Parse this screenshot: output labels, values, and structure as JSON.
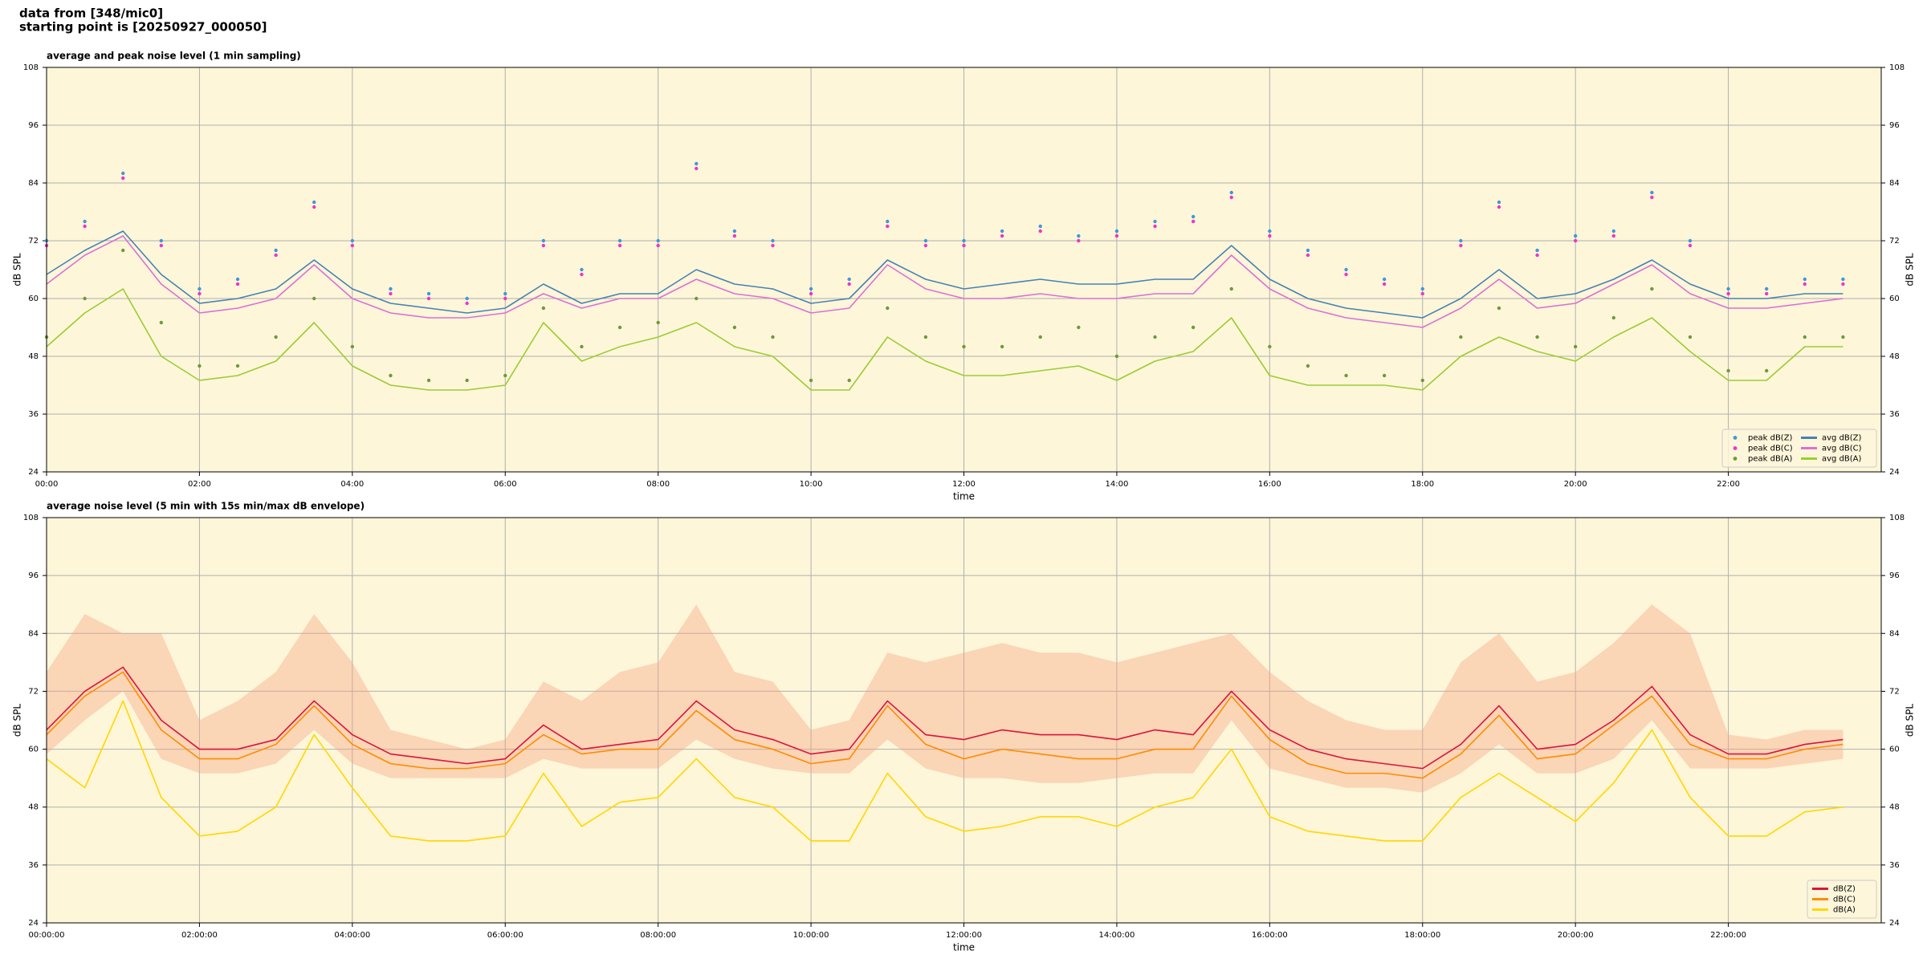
{
  "header": [
    "data from [348/mic0]",
    "starting point is [20250927_000050]"
  ],
  "chart_data": [
    {
      "type": "line",
      "title": "average and peak noise level (1 min sampling)",
      "x_label": "time",
      "y_label": "dB SPL",
      "background": "#fdf6d9",
      "xlim": [
        0,
        24
      ],
      "ylim": [
        24,
        108
      ],
      "yticks": [
        24,
        36,
        48,
        60,
        72,
        84,
        96,
        108
      ],
      "xticks": [
        {
          "value": 0,
          "label": "00:00"
        },
        {
          "value": 2,
          "label": "02:00"
        },
        {
          "value": 4,
          "label": "04:00"
        },
        {
          "value": 6,
          "label": "06:00"
        },
        {
          "value": 8,
          "label": "08:00"
        },
        {
          "value": 10,
          "label": "10:00"
        },
        {
          "value": 12,
          "label": "12:00"
        },
        {
          "value": 14,
          "label": "14:00"
        },
        {
          "value": 16,
          "label": "16:00"
        },
        {
          "value": 18,
          "label": "18:00"
        },
        {
          "value": 20,
          "label": "20:00"
        },
        {
          "value": 22,
          "label": "22:00"
        }
      ],
      "grid": true,
      "legend": "lower right",
      "legend_ncol": 2,
      "x": [
        0,
        0.5,
        1,
        1.5,
        2,
        2.5,
        3,
        3.5,
        4,
        4.5,
        5,
        5.5,
        6,
        6.5,
        7,
        7.5,
        8,
        8.5,
        9,
        9.5,
        10,
        10.5,
        11,
        11.5,
        12,
        12.5,
        13,
        13.5,
        14,
        14.5,
        15,
        15.5,
        16,
        16.5,
        17,
        17.5,
        18,
        18.5,
        19,
        19.5,
        20,
        20.5,
        21,
        21.5,
        22,
        22.5,
        23,
        23.5
      ],
      "series": [
        {
          "name": "peak dB(Z)",
          "color": "#3a9ad9",
          "style": "markers",
          "values": [
            72,
            76,
            86,
            72,
            62,
            64,
            70,
            80,
            72,
            62,
            61,
            60,
            61,
            72,
            66,
            72,
            72,
            88,
            74,
            72,
            62,
            64,
            76,
            72,
            72,
            74,
            75,
            73,
            74,
            76,
            77,
            82,
            74,
            70,
            66,
            64,
            62,
            72,
            80,
            70,
            73,
            74,
            82,
            72,
            62,
            62,
            64,
            64
          ]
        },
        {
          "name": "peak dB(C)",
          "color": "#ee33cc",
          "style": "markers",
          "values": [
            71,
            75,
            85,
            71,
            61,
            63,
            69,
            79,
            71,
            61,
            60,
            59,
            60,
            71,
            65,
            71,
            71,
            87,
            73,
            71,
            61,
            63,
            75,
            71,
            71,
            73,
            74,
            72,
            73,
            75,
            76,
            81,
            73,
            69,
            65,
            63,
            61,
            71,
            79,
            69,
            72,
            73,
            81,
            71,
            61,
            61,
            63,
            63
          ]
        },
        {
          "name": "peak dB(A)",
          "color": "#6b9a3a",
          "style": "markers",
          "values": [
            52,
            60,
            70,
            55,
            46,
            46,
            52,
            60,
            50,
            44,
            43,
            43,
            44,
            58,
            50,
            54,
            55,
            60,
            54,
            52,
            43,
            43,
            58,
            52,
            50,
            50,
            52,
            54,
            48,
            52,
            54,
            62,
            50,
            46,
            44,
            44,
            43,
            52,
            58,
            52,
            50,
            56,
            62,
            52,
            45,
            45,
            52,
            52
          ]
        },
        {
          "name": "avg dB(Z)",
          "color": "#4682b4",
          "style": "line",
          "values": [
            65,
            70,
            74,
            65,
            59,
            60,
            62,
            68,
            62,
            59,
            58,
            57,
            58,
            63,
            59,
            61,
            61,
            66,
            63,
            62,
            59,
            60,
            68,
            64,
            62,
            63,
            64,
            63,
            63,
            64,
            64,
            71,
            64,
            60,
            58,
            57,
            56,
            60,
            66,
            60,
            61,
            64,
            68,
            63,
            60,
            60,
            61,
            61
          ]
        },
        {
          "name": "avg dB(C)",
          "color": "#da70d6",
          "style": "line",
          "values": [
            63,
            69,
            73,
            63,
            57,
            58,
            60,
            67,
            60,
            57,
            56,
            56,
            57,
            61,
            58,
            60,
            60,
            64,
            61,
            60,
            57,
            58,
            67,
            62,
            60,
            60,
            61,
            60,
            60,
            61,
            61,
            69,
            62,
            58,
            56,
            55,
            54,
            58,
            64,
            58,
            59,
            63,
            67,
            61,
            58,
            58,
            59,
            60
          ]
        },
        {
          "name": "avg dB(A)",
          "color": "#9acd32",
          "style": "line",
          "values": [
            50,
            57,
            62,
            48,
            43,
            44,
            47,
            55,
            46,
            42,
            41,
            41,
            42,
            55,
            47,
            50,
            52,
            55,
            50,
            48,
            41,
            41,
            52,
            47,
            44,
            44,
            45,
            46,
            43,
            47,
            49,
            56,
            44,
            42,
            42,
            42,
            41,
            48,
            52,
            49,
            47,
            52,
            56,
            49,
            43,
            43,
            50,
            50
          ]
        }
      ]
    },
    {
      "type": "line",
      "title": "average noise level (5 min with 15s min/max dB envelope)",
      "x_label": "time",
      "y_label": "dB SPL",
      "background": "#fdf6d9",
      "xlim": [
        0,
        24
      ],
      "ylim": [
        24,
        108
      ],
      "yticks": [
        24,
        36,
        48,
        60,
        72,
        84,
        96,
        108
      ],
      "xticks": [
        {
          "value": 0,
          "label": "00:00:00"
        },
        {
          "value": 2,
          "label": "02:00:00"
        },
        {
          "value": 4,
          "label": "04:00:00"
        },
        {
          "value": 6,
          "label": "06:00:00"
        },
        {
          "value": 8,
          "label": "08:00:00"
        },
        {
          "value": 10,
          "label": "10:00:00"
        },
        {
          "value": 12,
          "label": "12:00:00"
        },
        {
          "value": 14,
          "label": "14:00:00"
        },
        {
          "value": 16,
          "label": "16:00:00"
        },
        {
          "value": 18,
          "label": "18:00:00"
        },
        {
          "value": 20,
          "label": "20:00:00"
        },
        {
          "value": 22,
          "label": "22:00:00"
        }
      ],
      "grid": true,
      "legend": "lower right",
      "legend_ncol": 1,
      "x": [
        0,
        0.5,
        1,
        1.5,
        2,
        2.5,
        3,
        3.5,
        4,
        4.5,
        5,
        5.5,
        6,
        6.5,
        7,
        7.5,
        8,
        8.5,
        9,
        9.5,
        10,
        10.5,
        11,
        11.5,
        12,
        12.5,
        13,
        13.5,
        14,
        14.5,
        15,
        15.5,
        16,
        16.5,
        17,
        17.5,
        18,
        18.5,
        19,
        19.5,
        20,
        20.5,
        21,
        21.5,
        22,
        22.5,
        23,
        23.5
      ],
      "envelope": {
        "color": "#f4a582",
        "low": [
          59,
          66,
          72,
          58,
          55,
          55,
          57,
          64,
          57,
          54,
          54,
          54,
          54,
          58,
          56,
          56,
          56,
          62,
          58,
          56,
          55,
          55,
          62,
          56,
          54,
          54,
          53,
          53,
          54,
          55,
          55,
          66,
          56,
          54,
          52,
          52,
          51,
          55,
          61,
          55,
          55,
          58,
          66,
          56,
          56,
          56,
          57,
          58
        ],
        "high": [
          76,
          88,
          84,
          84,
          66,
          70,
          76,
          88,
          78,
          64,
          62,
          60,
          62,
          74,
          70,
          76,
          78,
          90,
          76,
          74,
          64,
          66,
          80,
          78,
          80,
          82,
          80,
          80,
          78,
          80,
          82,
          84,
          76,
          70,
          66,
          64,
          64,
          78,
          84,
          74,
          76,
          82,
          90,
          84,
          63,
          62,
          64,
          64
        ]
      },
      "series": [
        {
          "name": "dB(Z)",
          "color": "#dc143c",
          "style": "line",
          "values": [
            64,
            72,
            77,
            66,
            60,
            60,
            62,
            70,
            63,
            59,
            58,
            57,
            58,
            65,
            60,
            61,
            62,
            70,
            64,
            62,
            59,
            60,
            70,
            63,
            62,
            64,
            63,
            63,
            62,
            64,
            63,
            72,
            64,
            60,
            58,
            57,
            56,
            61,
            69,
            60,
            61,
            66,
            73,
            63,
            59,
            59,
            61,
            62
          ]
        },
        {
          "name": "dB(C)",
          "color": "#ff8c00",
          "style": "line",
          "values": [
            63,
            71,
            76,
            64,
            58,
            58,
            61,
            69,
            61,
            57,
            56,
            56,
            57,
            63,
            59,
            60,
            60,
            68,
            62,
            60,
            57,
            58,
            69,
            61,
            58,
            60,
            59,
            58,
            58,
            60,
            60,
            71,
            62,
            57,
            55,
            55,
            54,
            59,
            67,
            58,
            59,
            65,
            71,
            61,
            58,
            58,
            60,
            61
          ]
        },
        {
          "name": "dB(A)",
          "color": "#ffd700",
          "style": "line",
          "values": [
            58,
            52,
            70,
            50,
            42,
            43,
            48,
            63,
            52,
            42,
            41,
            41,
            42,
            55,
            44,
            49,
            50,
            58,
            50,
            48,
            41,
            41,
            55,
            46,
            43,
            44,
            46,
            46,
            44,
            48,
            50,
            60,
            46,
            43,
            42,
            41,
            41,
            50,
            55,
            50,
            45,
            53,
            64,
            50,
            42,
            42,
            47,
            48
          ]
        }
      ]
    }
  ]
}
